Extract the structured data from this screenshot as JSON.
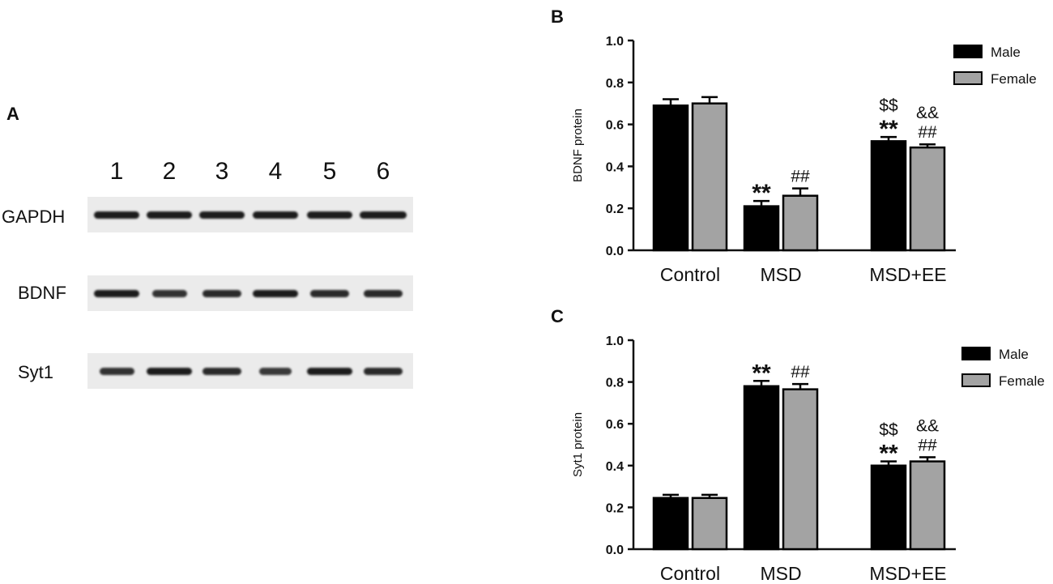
{
  "panel_a": {
    "label": "A",
    "lanes": [
      "1",
      "2",
      "3",
      "4",
      "5",
      "6"
    ],
    "blots": [
      {
        "protein": "GAPDH",
        "intensity": [
          1.0,
          1.0,
          1.0,
          1.0,
          1.0,
          1.05
        ]
      },
      {
        "protein": "BDNF",
        "intensity": [
          1.0,
          0.75,
          0.85,
          1.0,
          0.85,
          0.85
        ]
      },
      {
        "protein": "Syt1",
        "intensity": [
          0.75,
          1.0,
          0.85,
          0.7,
          1.0,
          0.85
        ]
      }
    ]
  },
  "chart_data": [
    {
      "panel_label": "B",
      "type": "bar",
      "categories": [
        "Control",
        "MSD",
        "MSD+EE"
      ],
      "series": [
        {
          "name": "Male",
          "color": "#000000",
          "values": [
            0.69,
            0.21,
            0.52
          ],
          "errors": [
            0.03,
            0.025,
            0.02
          ]
        },
        {
          "name": "Female",
          "color": "#a3a3a3",
          "values": [
            0.7,
            0.26,
            0.49
          ],
          "errors": [
            0.03,
            0.035,
            0.015
          ]
        }
      ],
      "annotations": [
        {
          "category": "MSD",
          "series": "Male",
          "lines": [
            "**"
          ]
        },
        {
          "category": "MSD",
          "series": "Female",
          "lines": [
            "##"
          ]
        },
        {
          "category": "MSD+EE",
          "series": "Male",
          "lines": [
            "$$",
            "**"
          ]
        },
        {
          "category": "MSD+EE",
          "series": "Female",
          "lines": [
            "&&",
            "##"
          ]
        }
      ],
      "ylabel": "BDNF protein",
      "ylim": [
        0,
        1.0
      ],
      "yticks": [
        "0.0",
        "0.2",
        "0.4",
        "0.6",
        "0.8",
        "1.0"
      ],
      "legend": "top-right",
      "grid": false
    },
    {
      "panel_label": "C",
      "type": "bar",
      "categories": [
        "Control",
        "MSD",
        "MSD+EE"
      ],
      "series": [
        {
          "name": "Male",
          "color": "#000000",
          "values": [
            0.245,
            0.78,
            0.4
          ],
          "errors": [
            0.015,
            0.025,
            0.02
          ]
        },
        {
          "name": "Female",
          "color": "#a3a3a3",
          "values": [
            0.245,
            0.765,
            0.42
          ],
          "errors": [
            0.015,
            0.025,
            0.02
          ]
        }
      ],
      "annotations": [
        {
          "category": "MSD",
          "series": "Male",
          "lines": [
            "**"
          ]
        },
        {
          "category": "MSD",
          "series": "Female",
          "lines": [
            "##"
          ]
        },
        {
          "category": "MSD+EE",
          "series": "Male",
          "lines": [
            "$$",
            "**"
          ]
        },
        {
          "category": "MSD+EE",
          "series": "Female",
          "lines": [
            "&&",
            "##"
          ]
        }
      ],
      "ylabel": "Syt1 protein",
      "ylim": [
        0,
        1.0
      ],
      "yticks": [
        "0.0",
        "0.2",
        "0.4",
        "0.6",
        "0.8",
        "1.0"
      ],
      "legend": "top-right",
      "grid": false
    }
  ]
}
